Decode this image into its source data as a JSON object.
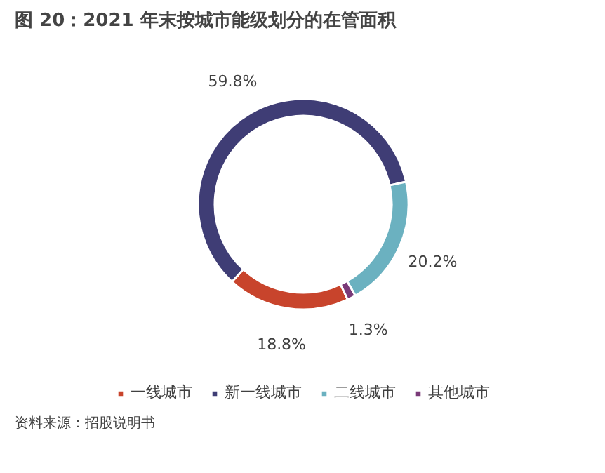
{
  "chart_data": {
    "type": "donut",
    "title": "图 20：2021 年末按城市能级划分的在管面积",
    "categories": [
      "一线城市",
      "新一线城市",
      "二线城市",
      "其他城市"
    ],
    "values": [
      18.8,
      59.8,
      20.2,
      1.3
    ],
    "colors": [
      "#c8442c",
      "#3f3d75",
      "#6bb1c0",
      "#7a3a78"
    ],
    "value_labels": [
      "18.8%",
      "59.8%",
      "20.2%",
      "1.3%"
    ],
    "legend": "bottom",
    "annotations": [
      "资料来源：招股说明书"
    ]
  }
}
